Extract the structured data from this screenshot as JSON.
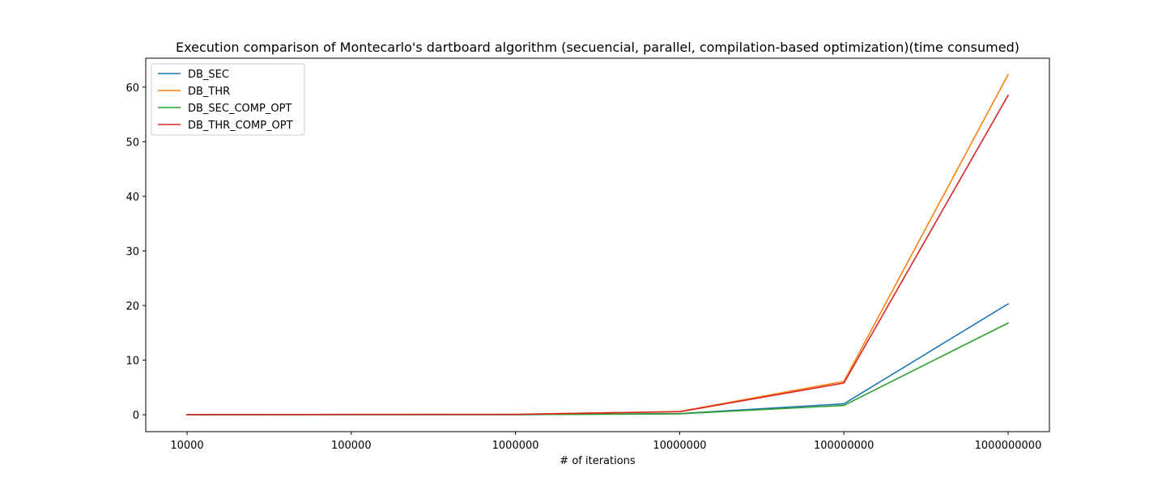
{
  "chart_data": {
    "type": "line",
    "title": "Execution comparison of Montecarlo's dartboard algorithm (secuencial, parallel, compilation-based optimization)(time consumed)",
    "xlabel": "# of iterations",
    "ylabel": "",
    "categories": [
      "10000",
      "100000",
      "1000000",
      "10000000",
      "100000000",
      "1000000000"
    ],
    "ylim": [
      -3.1,
      65.3
    ],
    "yticks": [
      0,
      10,
      20,
      30,
      40,
      50,
      60
    ],
    "grid": false,
    "legend_position": "upper-left",
    "series": [
      {
        "name": "DB_SEC",
        "color": "#1f77b4",
        "values": [
          0.002,
          0.02,
          0.02,
          0.2,
          2.0,
          20.3
        ]
      },
      {
        "name": "DB_THR",
        "color": "#ff7f0e",
        "values": [
          0.006,
          0.05,
          0.07,
          0.6,
          6.1,
          62.3
        ]
      },
      {
        "name": "DB_SEC_COMP_OPT",
        "color": "#2ca02c",
        "values": [
          0.001,
          0.017,
          0.018,
          0.17,
          1.7,
          16.8
        ]
      },
      {
        "name": "DB_THR_COMP_OPT",
        "color": "#d62728",
        "values": [
          0.006,
          0.05,
          0.06,
          0.55,
          5.8,
          58.5
        ]
      }
    ]
  }
}
